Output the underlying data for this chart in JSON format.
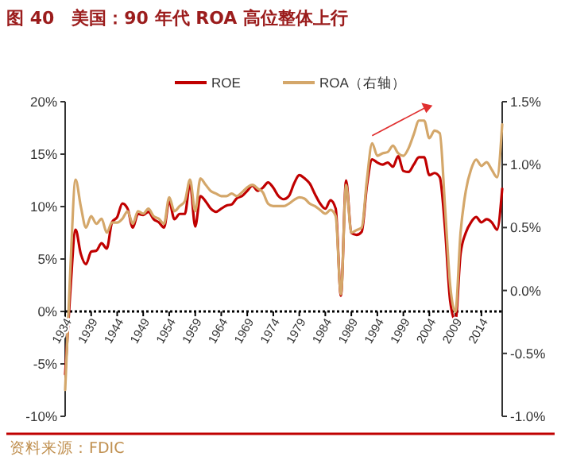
{
  "chart_data": {
    "type": "line",
    "title": "图 40　美国：90 年代 ROA 高位整体上行",
    "x": [
      1934,
      1935,
      1936,
      1937,
      1938,
      1939,
      1940,
      1941,
      1942,
      1943,
      1944,
      1945,
      1946,
      1947,
      1948,
      1949,
      1950,
      1951,
      1952,
      1953,
      1954,
      1955,
      1956,
      1957,
      1958,
      1959,
      1960,
      1961,
      1962,
      1963,
      1964,
      1965,
      1966,
      1967,
      1968,
      1969,
      1970,
      1971,
      1972,
      1973,
      1974,
      1975,
      1976,
      1977,
      1978,
      1979,
      1980,
      1981,
      1982,
      1983,
      1984,
      1985,
      1986,
      1987,
      1988,
      1989,
      1990,
      1991,
      1992,
      1993,
      1994,
      1995,
      1996,
      1997,
      1998,
      1999,
      2000,
      2001,
      2002,
      2003,
      2004,
      2005,
      2006,
      2007,
      2008,
      2009,
      2010,
      2011,
      2012,
      2013,
      2014,
      2015,
      2016,
      2017,
      2018
    ],
    "series": [
      {
        "name": "ROE",
        "color": "#c00000",
        "values": [
          -6,
          2,
          7.8,
          5.5,
          4.5,
          5.7,
          5.8,
          6.5,
          6,
          8.5,
          9,
          10.3,
          9.8,
          8,
          9.3,
          9.2,
          9.5,
          8.8,
          8.5,
          8,
          10.5,
          8.8,
          9.3,
          9.3,
          12.2,
          8.1,
          11,
          10.5,
          9.8,
          9.5,
          9.8,
          10.1,
          10.2,
          10.8,
          11,
          11.5,
          12,
          11.5,
          11.8,
          12.3,
          11.8,
          11,
          10.7,
          11,
          12.2,
          13,
          12.7,
          12.2,
          11.2,
          10.3,
          9.8,
          10.6,
          9.8,
          1.5,
          12.5,
          7.5,
          7.3,
          7.6,
          12,
          14.5,
          14.2,
          14,
          14.2,
          13.8,
          14.8,
          13.4,
          13.3,
          14,
          14.7,
          14.7,
          13,
          13.2,
          12.8,
          8,
          1,
          -0.9,
          5.5,
          7.5,
          8.5,
          9,
          8.5,
          8.8,
          8.5,
          7.8,
          11.7
        ]
      },
      {
        "name": "ROA（右轴）",
        "color": "#d4a76a",
        "axis": "y2",
        "values": [
          -0.79,
          0.17,
          0.88,
          0.67,
          0.5,
          0.59,
          0.53,
          0.57,
          0.46,
          0.54,
          0.54,
          0.57,
          0.63,
          0.53,
          0.63,
          0.61,
          0.65,
          0.59,
          0.57,
          0.53,
          0.74,
          0.63,
          0.67,
          0.71,
          0.88,
          0.63,
          0.89,
          0.84,
          0.79,
          0.77,
          0.75,
          0.75,
          0.77,
          0.75,
          0.78,
          0.82,
          0.84,
          0.81,
          0.78,
          0.69,
          0.67,
          0.67,
          0.67,
          0.69,
          0.72,
          0.74,
          0.73,
          0.69,
          0.67,
          0.64,
          0.61,
          0.64,
          0.59,
          -0.03,
          0.84,
          0.46,
          0.48,
          0.5,
          0.88,
          1.17,
          1.07,
          1.09,
          1.1,
          1.15,
          1.09,
          1.07,
          1.13,
          1.24,
          1.35,
          1.35,
          1.21,
          1.27,
          1.25,
          0.67,
          0.04,
          -0.17,
          0.46,
          0.79,
          0.96,
          1.04,
          0.99,
          1.02,
          0.96,
          0.9,
          1.32
        ]
      }
    ],
    "xlim": [
      1934,
      2018
    ],
    "xticks": [
      1934,
      1939,
      1944,
      1949,
      1954,
      1959,
      1964,
      1969,
      1974,
      1979,
      1984,
      1989,
      1994,
      1999,
      2004,
      2009,
      2014
    ],
    "ylim": [
      -10,
      20
    ],
    "yticks": [
      {
        "value": -10,
        "label": "-10%"
      },
      {
        "value": -5,
        "label": "-5%"
      },
      {
        "value": 0,
        "label": "0%"
      },
      {
        "value": 5,
        "label": "5%"
      },
      {
        "value": 10,
        "label": "10%"
      },
      {
        "value": 15,
        "label": "15%"
      },
      {
        "value": 20,
        "label": "20%"
      }
    ],
    "y2lim": [
      -1,
      1.5
    ],
    "y2ticks": [
      {
        "value": -1,
        "label": "-1.0%"
      },
      {
        "value": -0.5,
        "label": "-0.5%"
      },
      {
        "value": 0,
        "label": "0.0%"
      },
      {
        "value": 0.5,
        "label": "0.5%"
      },
      {
        "value": 1,
        "label": "1.0%"
      },
      {
        "value": 1.5,
        "label": "1.5%"
      }
    ],
    "legend": "top",
    "marker": "none",
    "line_style": "solid",
    "annotations": [
      "资料来源：FDIC"
    ]
  }
}
